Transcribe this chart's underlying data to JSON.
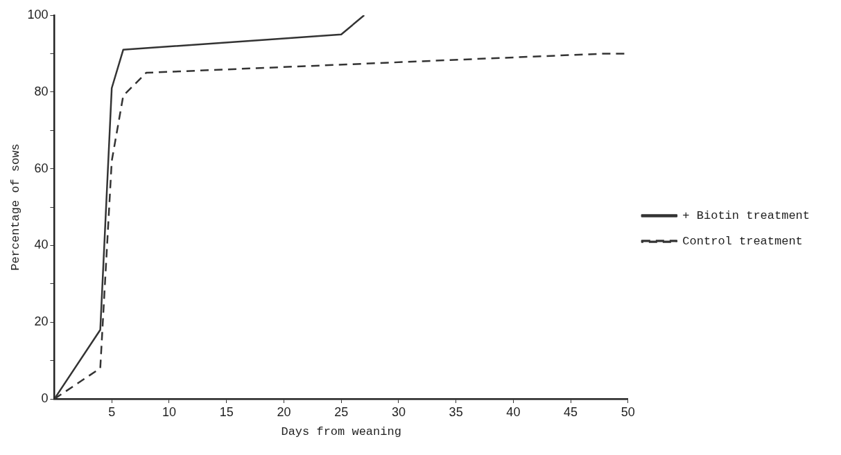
{
  "chart_data": {
    "type": "line",
    "xlabel": "Days from weaning",
    "ylabel": "Percentage of sows",
    "xlim": [
      0,
      50
    ],
    "ylim": [
      0,
      100
    ],
    "xticks": [
      5,
      10,
      15,
      20,
      25,
      30,
      35,
      40,
      45,
      50
    ],
    "yticks": [
      0,
      {
        "value": 10,
        "label": null
      },
      20,
      {
        "value": 30,
        "label": null
      },
      40,
      {
        "value": 50,
        "label": null
      },
      60,
      {
        "value": 70,
        "label": null
      },
      80,
      {
        "value": 90,
        "label": null
      },
      100
    ],
    "grid": false,
    "legend": "right",
    "marker": "none",
    "series": [
      {
        "name": "+ Biotin treatment",
        "color": "#333333",
        "line_style": "solid",
        "x": [
          0,
          4,
          5,
          6,
          25,
          27
        ],
        "values": [
          0,
          18,
          81,
          91,
          95,
          100
        ]
      },
      {
        "name": "Control treatment",
        "color": "#333333",
        "line_style": "dashed",
        "x": [
          0,
          4,
          5,
          6,
          8,
          48,
          50
        ],
        "values": [
          0,
          8,
          62,
          79,
          85,
          90,
          90
        ]
      }
    ]
  }
}
